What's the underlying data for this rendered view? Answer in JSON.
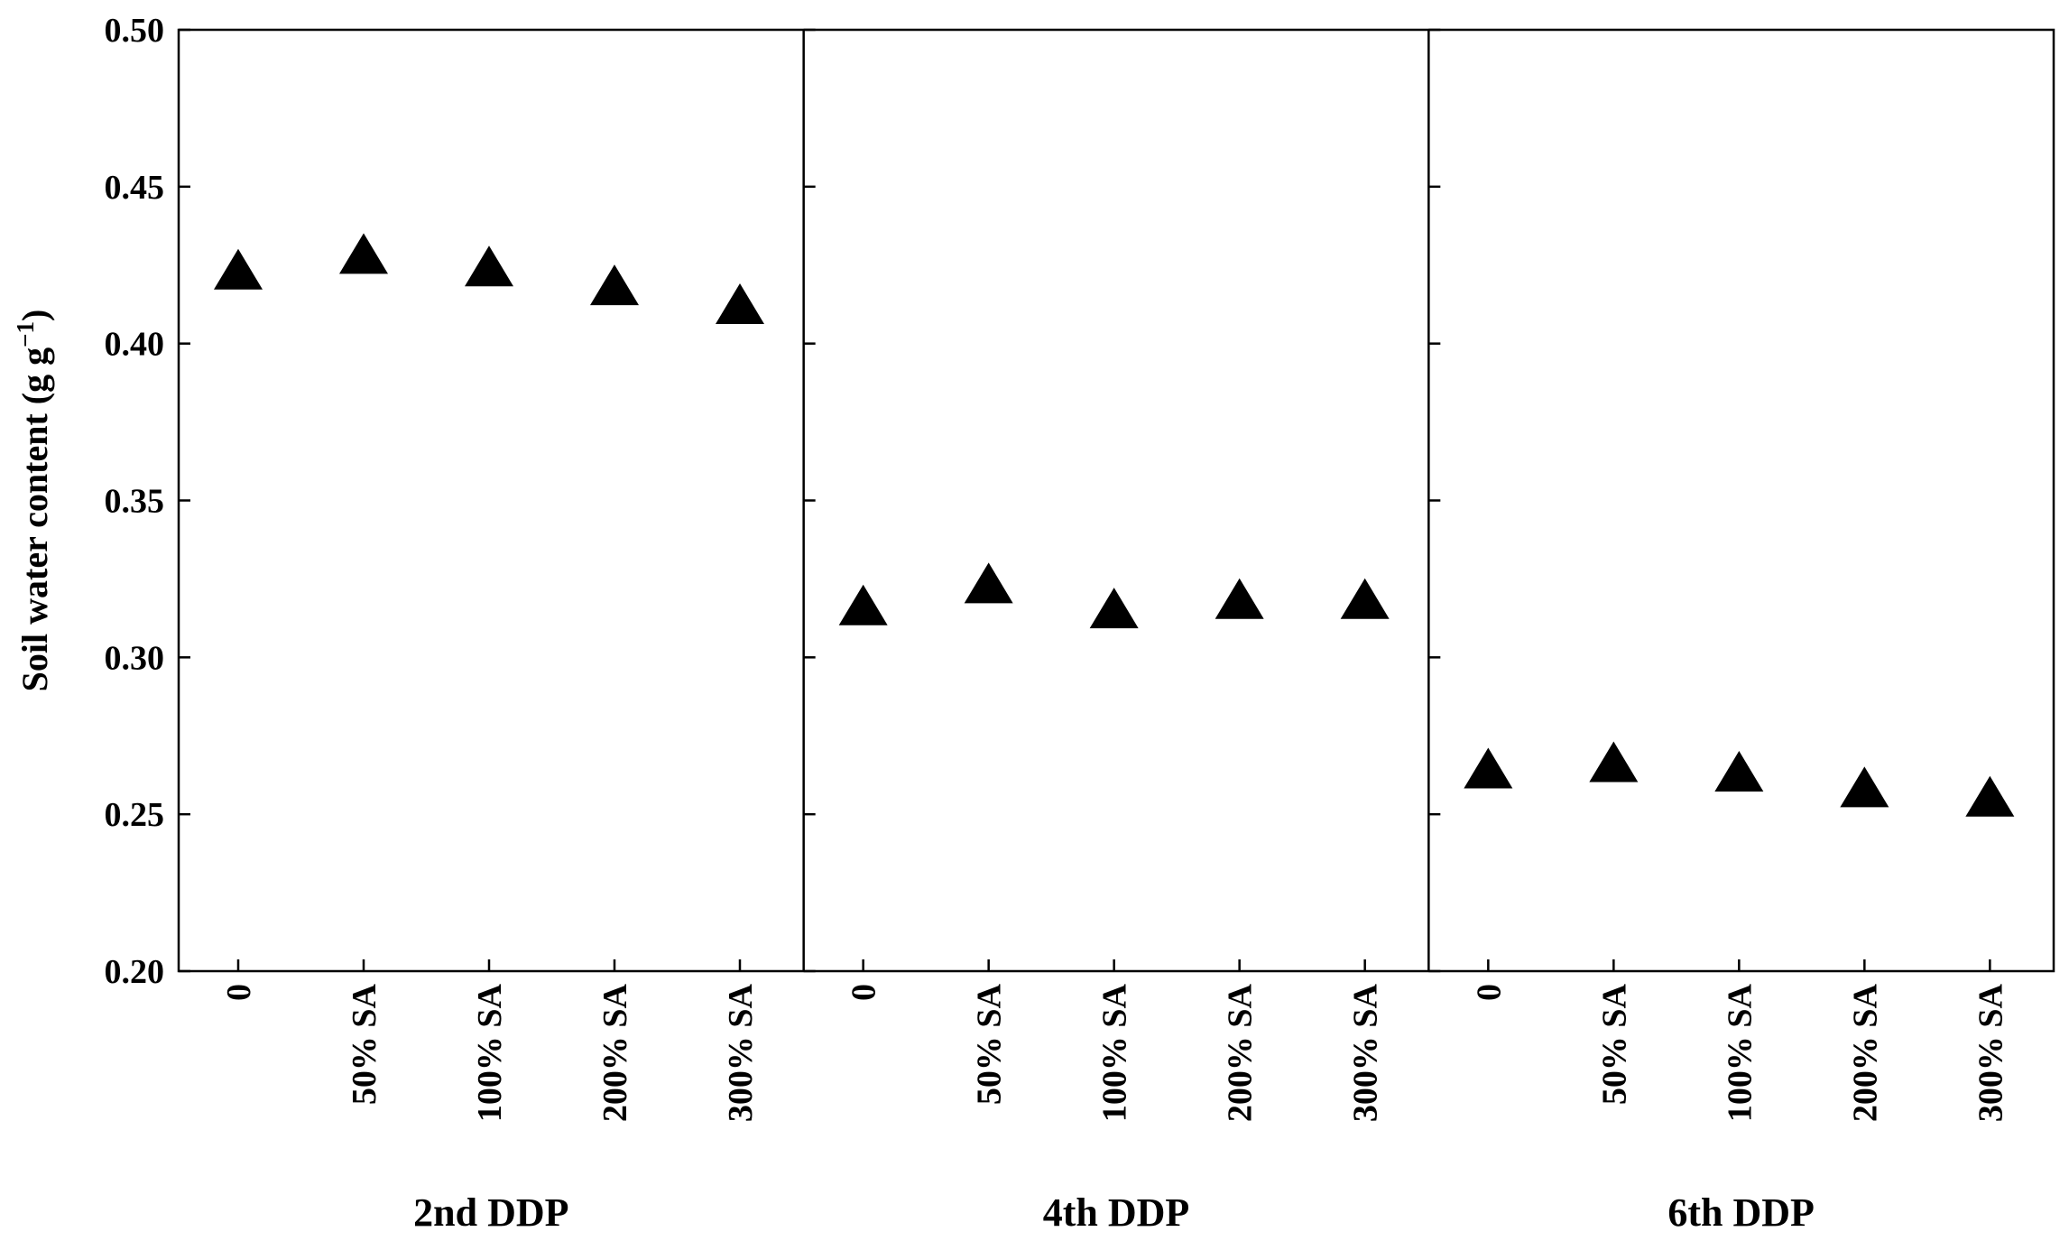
{
  "chart_data": {
    "type": "scatter",
    "ylabel_main": "Soil water content (g g",
    "ylabel_sup": "−1",
    "ylabel_close": ")",
    "ylim": [
      0.2,
      0.5
    ],
    "yticks": [
      "0.20",
      "0.25",
      "0.30",
      "0.35",
      "0.40",
      "0.45",
      "0.50"
    ],
    "categories": [
      "0",
      "50% SA",
      "100% SA",
      "200% SA",
      "300% SA"
    ],
    "marker": "filled-triangle",
    "marker_color": "#000000",
    "grid": false,
    "panels": [
      {
        "label": "2nd DDP",
        "values": [
          0.423,
          0.428,
          0.424,
          0.418,
          0.412
        ]
      },
      {
        "label": "4th DDP",
        "values": [
          0.316,
          0.323,
          0.315,
          0.318,
          0.318
        ]
      },
      {
        "label": "6th DDP",
        "values": [
          0.264,
          0.266,
          0.263,
          0.258,
          0.255
        ]
      }
    ]
  }
}
